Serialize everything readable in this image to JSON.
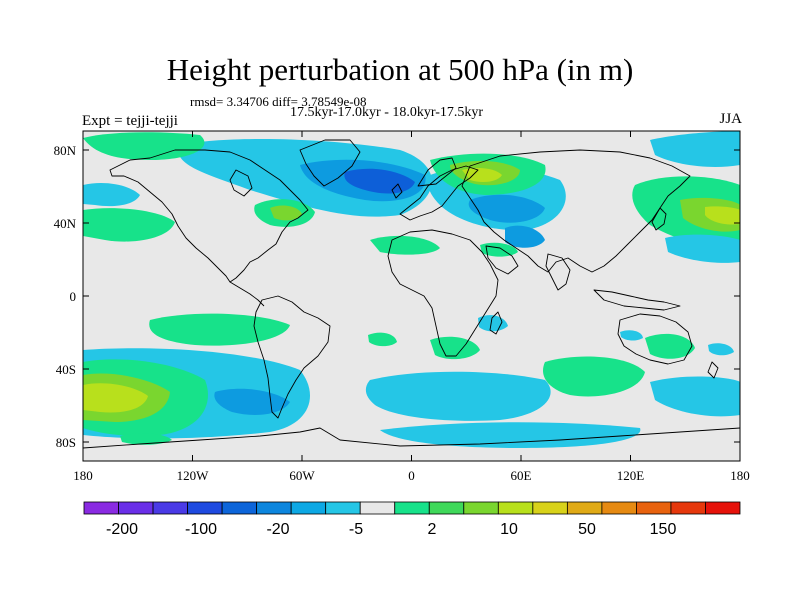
{
  "title": "Height perturbation at 500 hPa (in m)",
  "stats": "rmsd= 3.34706 diff= 3.78549e-08",
  "period": "17.5kyr-17.0kyr - 18.0kyr-17.5kyr",
  "experiment": "Expt = tejji-tejji",
  "season": "JJA",
  "colors": {
    "background": "#e8e8e8",
    "neg_light": "#25c6e6",
    "neg_mid": "#0d9be0",
    "neg_dark": "#0d5fd8",
    "pos_light": "#17e28a",
    "pos_mid": "#7ad62f",
    "pos_strong": "#b8e01c",
    "coast": "#000000"
  },
  "axes": {
    "x_ticks": [
      "180",
      "120W",
      "60W",
      "0",
      "60E",
      "120E",
      "180"
    ],
    "y_ticks": [
      "80N",
      "40N",
      "0",
      "40S",
      "80S"
    ]
  },
  "colorbar": {
    "colors": [
      "#8a2be2",
      "#6a2fe8",
      "#4a3ae6",
      "#1e4ae0",
      "#0d65da",
      "#0d86de",
      "#0da8e4",
      "#25c6e6",
      "#e8e8e8",
      "#17e28a",
      "#3fd85a",
      "#7ad62f",
      "#b8e01c",
      "#d8d21a",
      "#e0aa16",
      "#e68a12",
      "#e8620e",
      "#e6380c",
      "#e6120a"
    ],
    "labels": [
      "-200",
      "-100",
      "-20",
      "-5",
      "2",
      "10",
      "50",
      "150"
    ]
  }
}
